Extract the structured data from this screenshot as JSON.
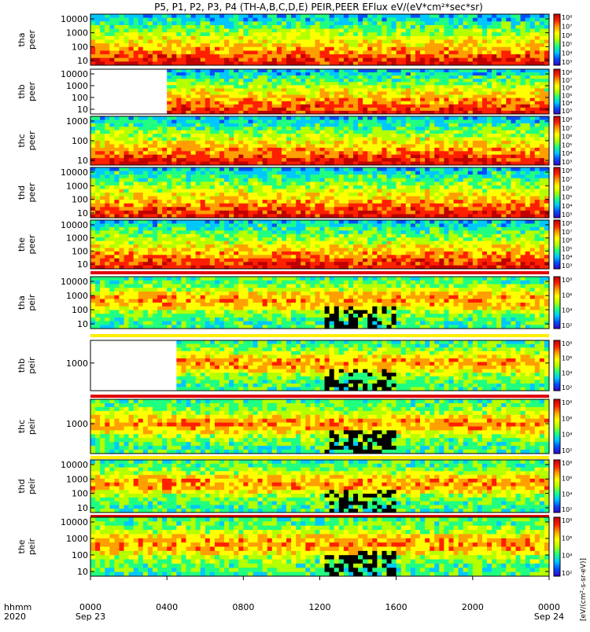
{
  "chart_data": {
    "type": "heatmap",
    "title": "P5, P1, P2, P3, P4 (TH-A,B,C,D,E) PEIR,PEER EFlux eV/(eV*cm²*sec*sr)",
    "x_axis": {
      "unit_label": "hhmm",
      "year_label": "2020",
      "range": [
        "2020-09-23 00:00",
        "2020-09-24 00:00"
      ],
      "ticks": [
        {
          "label": "0000",
          "date": "Sep 23"
        },
        {
          "label": "0400",
          "date": ""
        },
        {
          "label": "0800",
          "date": ""
        },
        {
          "label": "1200",
          "date": ""
        },
        {
          "label": "1600",
          "date": ""
        },
        {
          "label": "2000",
          "date": ""
        },
        {
          "label": "0000",
          "date": "Sep 24"
        }
      ]
    },
    "colorbar_label": "[eV/(cm²-s-sr-eV)]",
    "panels": [
      {
        "probe": "tha",
        "product": "peer",
        "yscale": "log",
        "yticks": [
          "10",
          "100",
          "1000",
          "10000"
        ],
        "cbar_ticks": [
          "10³",
          "10⁴",
          "10⁵",
          "10⁶",
          "10⁷",
          "10⁸"
        ],
        "band": "none",
        "data_start_hour": 0.0
      },
      {
        "probe": "thb",
        "product": "peer",
        "yscale": "log",
        "yticks": [
          "10",
          "100",
          "1000",
          "10000"
        ],
        "cbar_ticks": [
          "10³",
          "10⁴",
          "10⁵",
          "10⁶",
          "10⁷",
          "10⁸"
        ],
        "band": "none",
        "data_start_hour": 4.0
      },
      {
        "probe": "thc",
        "product": "peer",
        "yscale": "log",
        "yticks": [
          "10",
          "100",
          "1000"
        ],
        "cbar_ticks": [
          "10³",
          "10⁴",
          "10⁵",
          "10⁶",
          "10⁷",
          "10⁸"
        ],
        "band": "none",
        "data_start_hour": 0.0
      },
      {
        "probe": "thd",
        "product": "peer",
        "yscale": "log",
        "yticks": [
          "10",
          "100",
          "1000",
          "10000"
        ],
        "cbar_ticks": [
          "10³",
          "10⁴",
          "10⁵",
          "10⁶",
          "10⁷",
          "10⁸"
        ],
        "band": "none",
        "data_start_hour": 0.0
      },
      {
        "probe": "the",
        "product": "peer",
        "yscale": "log",
        "yticks": [
          "10",
          "100",
          "1000",
          "10000"
        ],
        "cbar_ticks": [
          "10³",
          "10⁴",
          "10⁵",
          "10⁶",
          "10⁷",
          "10⁸"
        ],
        "band": "none",
        "data_start_hour": 0.0
      },
      {
        "probe": "tha",
        "product": "peir",
        "yscale": "log",
        "yticks": [
          "10",
          "100",
          "1000",
          "10000"
        ],
        "cbar_ticks": [
          "10²",
          "10⁴",
          "10⁶",
          "10⁸"
        ],
        "band": "mixed",
        "data_start_hour": 0.0
      },
      {
        "probe": "thb",
        "product": "peir",
        "yscale": "log",
        "yticks": [
          "1000"
        ],
        "cbar_ticks": [
          "10²",
          "10⁴",
          "10⁶",
          "10⁸"
        ],
        "band": "mixed",
        "data_start_hour": 4.3
      },
      {
        "probe": "thc",
        "product": "peir",
        "yscale": "log",
        "yticks": [
          "1000"
        ],
        "cbar_ticks": [
          "10²",
          "10⁴",
          "10⁶",
          "10⁸"
        ],
        "band": "none",
        "data_start_hour": 0.0
      },
      {
        "probe": "thd",
        "product": "peir",
        "yscale": "log",
        "yticks": [
          "10",
          "100",
          "1000",
          "10000"
        ],
        "cbar_ticks": [
          "10²",
          "10⁴",
          "10⁶",
          "10⁸"
        ],
        "band": "mixed",
        "data_start_hour": 0.0
      },
      {
        "probe": "the",
        "product": "peir",
        "yscale": "log",
        "yticks": [
          "10",
          "100",
          "1000",
          "10000"
        ],
        "cbar_ticks": [
          "10²",
          "10⁴",
          "10⁶",
          "10⁸"
        ],
        "band": "mixed",
        "data_start_hour": 0.0
      }
    ],
    "colormap": [
      "#000000",
      "#3a00c8",
      "#0050ff",
      "#00c8ff",
      "#20ff80",
      "#b4ff00",
      "#ffff00",
      "#ffa000",
      "#ff2000",
      "#c00000"
    ]
  }
}
